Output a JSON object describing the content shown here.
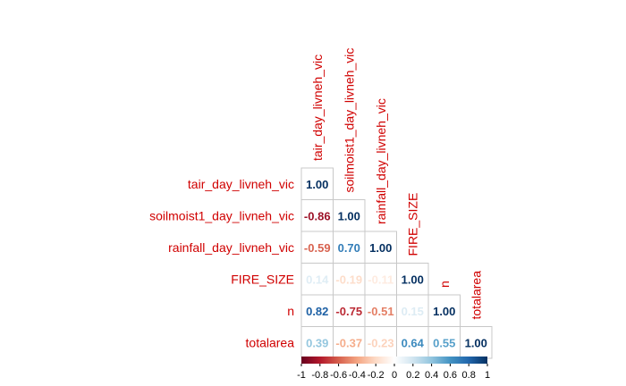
{
  "chart_data": {
    "type": "heatmap",
    "variant": "correlation-matrix-lower-triangle",
    "variables": [
      "tair_day_livneh_vic",
      "soilmoist1_day_livneh_vic",
      "rainfall_day_livneh_vic",
      "FIRE_SIZE",
      "n",
      "totalarea"
    ],
    "matrix": [
      [
        1.0,
        null,
        null,
        null,
        null,
        null
      ],
      [
        -0.86,
        1.0,
        null,
        null,
        null,
        null
      ],
      [
        -0.59,
        0.7,
        1.0,
        null,
        null,
        null
      ],
      [
        0.14,
        -0.19,
        -0.11,
        1.0,
        null,
        null
      ],
      [
        0.82,
        -0.75,
        -0.51,
        0.15,
        1.0,
        null
      ],
      [
        0.39,
        -0.37,
        -0.23,
        0.64,
        0.55,
        1.0
      ]
    ],
    "number_format": "0.00",
    "color_scale": {
      "min": -1,
      "max": 1,
      "ticks": [
        "-1",
        "-0.8",
        "-0.6",
        "-0.4",
        "-0.2",
        "0",
        "0.2",
        "0.4",
        "0.6",
        "0.8",
        "1"
      ],
      "stops": [
        {
          "value": -1.0,
          "color": "#67001f"
        },
        {
          "value": -0.8,
          "color": "#b2182b"
        },
        {
          "value": -0.6,
          "color": "#d6604d"
        },
        {
          "value": -0.4,
          "color": "#f4a582"
        },
        {
          "value": -0.2,
          "color": "#fddbc7"
        },
        {
          "value": 0.0,
          "color": "#ffffff"
        },
        {
          "value": 0.2,
          "color": "#d1e5f0"
        },
        {
          "value": 0.4,
          "color": "#92c5de"
        },
        {
          "value": 0.6,
          "color": "#4393c3"
        },
        {
          "value": 0.8,
          "color": "#2166ac"
        },
        {
          "value": 1.0,
          "color": "#053061"
        }
      ]
    },
    "label_color": "#d00000",
    "legend_position": "bottom"
  }
}
